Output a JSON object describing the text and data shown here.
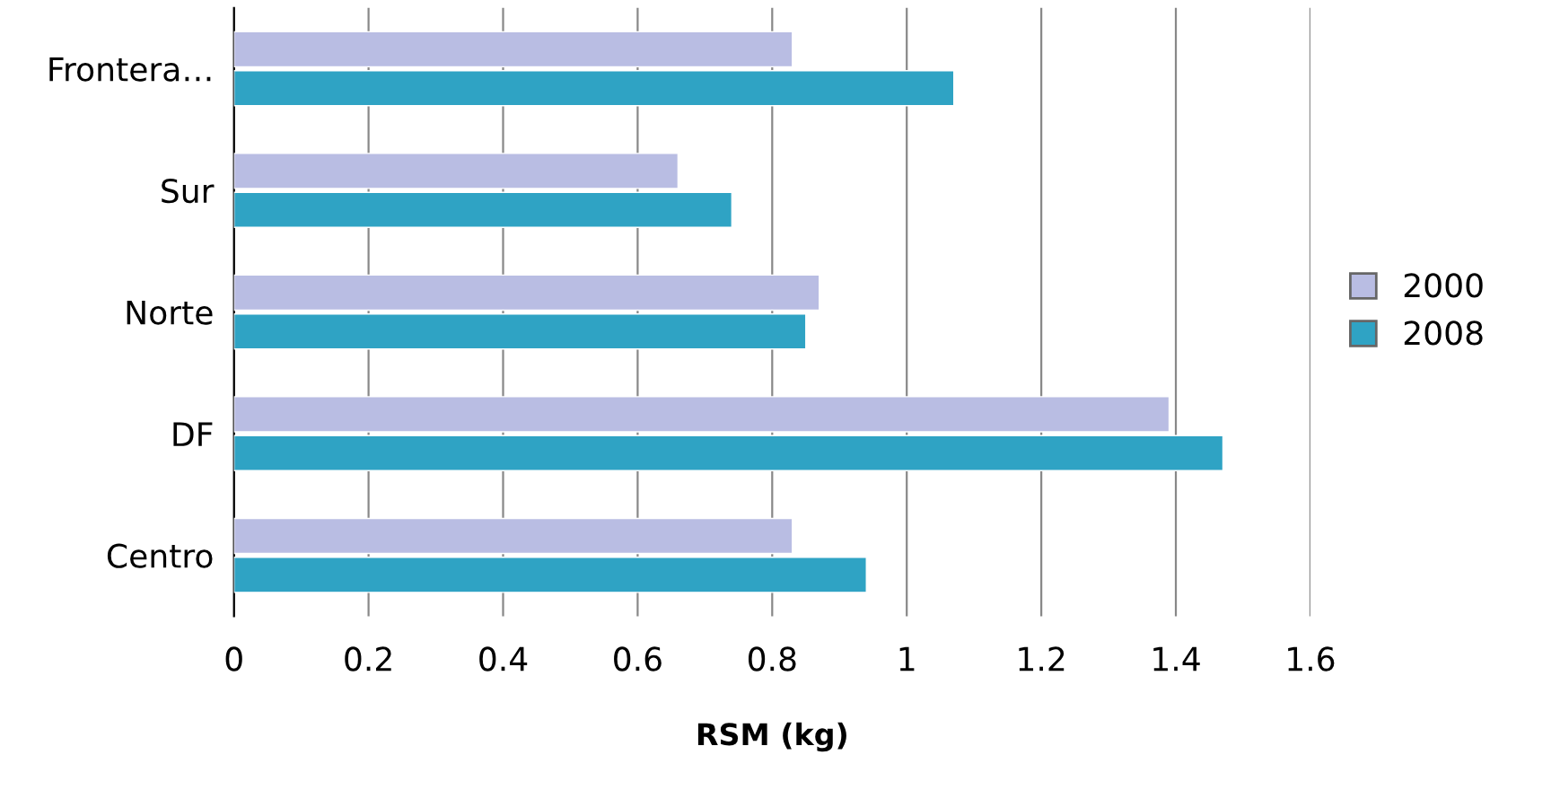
{
  "chart_data": {
    "type": "bar",
    "orientation": "horizontal",
    "xlabel": "RSM (kg)",
    "categories": [
      "Frontera…",
      "Sur",
      "Norte",
      "DF",
      "Centro"
    ],
    "series": [
      {
        "name": "2000",
        "color": "#b9bde3",
        "values": [
          0.83,
          0.66,
          0.87,
          1.39,
          0.83
        ]
      },
      {
        "name": "2008",
        "color": "#2fa3c4",
        "values": [
          1.07,
          0.74,
          0.85,
          1.47,
          0.94
        ]
      }
    ],
    "xlim": [
      0,
      1.6
    ],
    "xticks": [
      0,
      0.2,
      0.4,
      0.6,
      0.8,
      1,
      1.2,
      1.4,
      1.6
    ],
    "grid": "x",
    "legend": "right"
  }
}
